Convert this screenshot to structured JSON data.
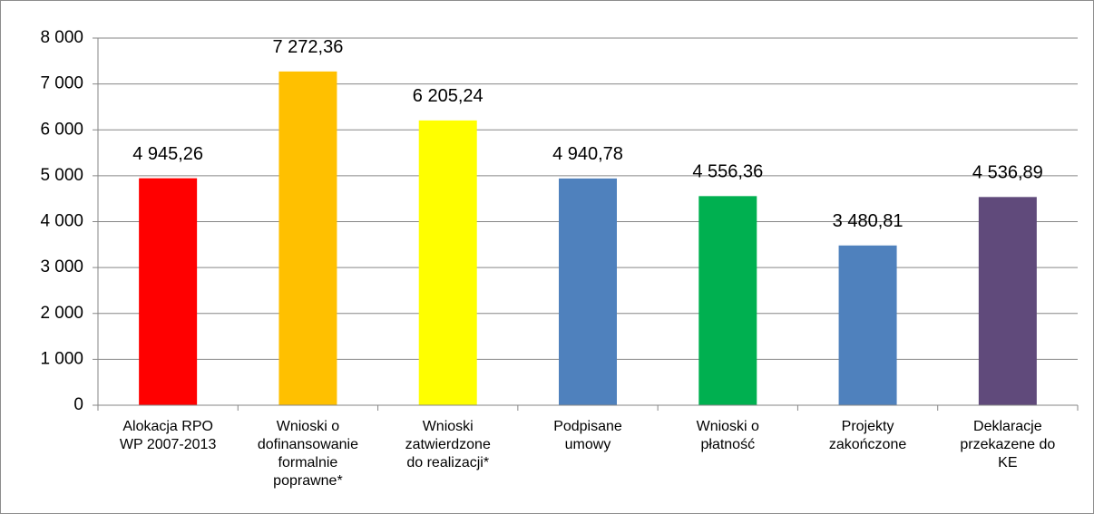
{
  "chart_data": {
    "type": "bar",
    "categories": [
      "Alokacja RPO\nWP 2007-2013",
      "Wnioski o\ndofinansowanie\nformalnie\npoprawne*",
      "Wnioski\nzatwierdzone\ndo realizacji*",
      "Podpisane\numowy",
      "Wnioski o\npłatność",
      "Projekty\nzakończone",
      "Deklaracje\nprzekazene do\nKE"
    ],
    "values": [
      4945.26,
      7272.36,
      6205.24,
      4940.78,
      4556.36,
      3480.81,
      4536.89
    ],
    "value_labels": [
      "4 945,26",
      "7 272,36",
      "6 205,24",
      "4 940,78",
      "4 556,36",
      "3 480,81",
      "4 536,89"
    ],
    "colors": [
      "#ff0000",
      "#ffc000",
      "#ffff00",
      "#4f81bd",
      "#00b050",
      "#4f81bd",
      "#604a7b"
    ],
    "ylim": [
      0,
      8000
    ],
    "yticks": [
      0,
      {
        "value": 1000,
        "label": "1 000"
      },
      {
        "value": 2000,
        "label": "2 000"
      },
      {
        "value": 3000,
        "label": "3 000"
      },
      {
        "value": 4000,
        "label": "4 000"
      },
      {
        "value": 5000,
        "label": "5 000"
      },
      {
        "value": 6000,
        "label": "6 000"
      },
      {
        "value": 7000,
        "label": "7 000"
      },
      {
        "value": 8000,
        "label": "8 000"
      }
    ],
    "grid": true
  }
}
